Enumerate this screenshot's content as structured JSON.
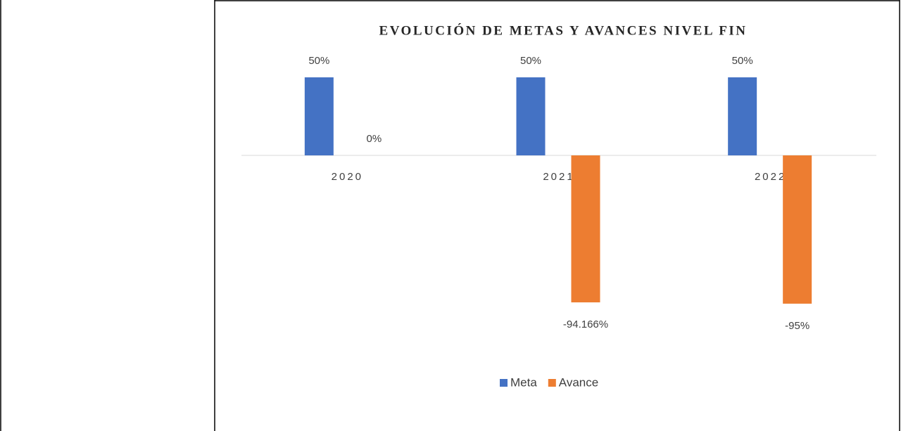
{
  "chart_data": {
    "type": "bar",
    "title": "EVOLUCIÓN DE METAS Y AVANCES NIVEL FIN",
    "categories": [
      "2020",
      "2021",
      "2022"
    ],
    "series": [
      {
        "name": "Meta",
        "color": "#4472c4",
        "values": [
          50,
          50,
          50
        ],
        "value_labels": [
          "50%",
          "50%",
          "50%"
        ]
      },
      {
        "name": "Avance",
        "color": "#ed7d31",
        "values": [
          0,
          -94.166,
          -95
        ],
        "value_labels": [
          "0%",
          "-94.166%",
          "-95%"
        ]
      }
    ],
    "legend": "bottom"
  }
}
